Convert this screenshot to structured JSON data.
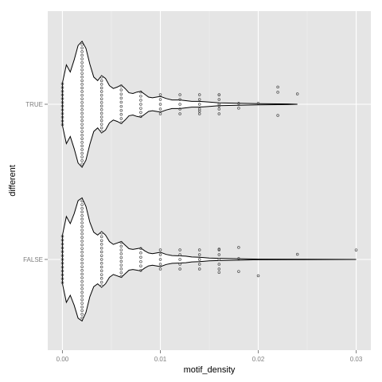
{
  "chart_data": {
    "type": "violin",
    "xlabel": "motif_density",
    "ylabel": "different",
    "x_ticks": [
      "0.00",
      "0.01",
      "0.02",
      "0.03"
    ],
    "x_tick_values": [
      0,
      0.01,
      0.02,
      0.03
    ],
    "xlim": [
      -0.0015,
      0.0315
    ],
    "categories": [
      "FALSE",
      "TRUE"
    ],
    "grid": true,
    "panel_background": "#e5e5e5",
    "grid_color": "#ffffff",
    "violin_fill": "#ffffff",
    "violin_outline": "#000000",
    "point_color": "#4d4d4d",
    "violins": [
      {
        "category": "TRUE",
        "profile": [
          [
            0,
            0.3
          ],
          [
            0.0004,
            0.55
          ],
          [
            0.0008,
            0.45
          ],
          [
            0.0012,
            0.62
          ],
          [
            0.0016,
            0.82
          ],
          [
            0.002,
            0.88
          ],
          [
            0.0024,
            0.78
          ],
          [
            0.0028,
            0.56
          ],
          [
            0.0032,
            0.38
          ],
          [
            0.0036,
            0.33
          ],
          [
            0.004,
            0.4
          ],
          [
            0.0044,
            0.36
          ],
          [
            0.0048,
            0.26
          ],
          [
            0.0052,
            0.22
          ],
          [
            0.0056,
            0.24
          ],
          [
            0.006,
            0.27
          ],
          [
            0.0064,
            0.22
          ],
          [
            0.0068,
            0.16
          ],
          [
            0.0072,
            0.15
          ],
          [
            0.0076,
            0.17
          ],
          [
            0.008,
            0.18
          ],
          [
            0.0084,
            0.14
          ],
          [
            0.0088,
            0.1
          ],
          [
            0.0092,
            0.09
          ],
          [
            0.0096,
            0.1
          ],
          [
            0.01,
            0.11
          ],
          [
            0.0106,
            0.08
          ],
          [
            0.0112,
            0.06
          ],
          [
            0.012,
            0.06
          ],
          [
            0.0126,
            0.05
          ],
          [
            0.0132,
            0.04
          ],
          [
            0.014,
            0.04
          ],
          [
            0.015,
            0.03
          ],
          [
            0.016,
            0.02
          ],
          [
            0.018,
            0.015
          ],
          [
            0.02,
            0.008
          ],
          [
            0.022,
            0.006
          ],
          [
            0.023,
            0.004
          ],
          [
            0.024,
            0.0
          ]
        ],
        "dense_columns": [
          0,
          0.002,
          0.004,
          0.006,
          0.008,
          0.01,
          0.012,
          0.014,
          0.016
        ],
        "points": [
          [
            0.018,
            -0.045
          ],
          [
            0.018,
            0.01
          ],
          [
            0.02,
            0.01
          ],
          [
            0.022,
            0.2
          ],
          [
            0.022,
            0.14
          ],
          [
            0.022,
            -0.13
          ],
          [
            0.024,
            0.12
          ],
          [
            0.016,
            0.11
          ],
          [
            0.016,
            -0.02
          ],
          [
            0.014,
            -0.08
          ]
        ]
      },
      {
        "category": "FALSE",
        "profile": [
          [
            0,
            0.34
          ],
          [
            0.0004,
            0.6
          ],
          [
            0.0008,
            0.5
          ],
          [
            0.0012,
            0.64
          ],
          [
            0.0016,
            0.82
          ],
          [
            0.002,
            0.86
          ],
          [
            0.0024,
            0.74
          ],
          [
            0.0028,
            0.52
          ],
          [
            0.0032,
            0.38
          ],
          [
            0.0036,
            0.34
          ],
          [
            0.004,
            0.39
          ],
          [
            0.0044,
            0.34
          ],
          [
            0.0048,
            0.25
          ],
          [
            0.0052,
            0.21
          ],
          [
            0.0056,
            0.23
          ],
          [
            0.006,
            0.25
          ],
          [
            0.0064,
            0.2
          ],
          [
            0.0068,
            0.15
          ],
          [
            0.0072,
            0.14
          ],
          [
            0.0076,
            0.15
          ],
          [
            0.008,
            0.16
          ],
          [
            0.0084,
            0.12
          ],
          [
            0.0088,
            0.09
          ],
          [
            0.0092,
            0.08
          ],
          [
            0.0096,
            0.09
          ],
          [
            0.01,
            0.1
          ],
          [
            0.0106,
            0.07
          ],
          [
            0.0112,
            0.055
          ],
          [
            0.012,
            0.05
          ],
          [
            0.0126,
            0.045
          ],
          [
            0.0132,
            0.035
          ],
          [
            0.014,
            0.03
          ],
          [
            0.015,
            0.02
          ],
          [
            0.016,
            0.015
          ],
          [
            0.018,
            0.01
          ],
          [
            0.02,
            0.005
          ],
          [
            0.024,
            0.003
          ],
          [
            0.03,
            0.0
          ]
        ],
        "dense_columns": [
          0,
          0.002,
          0.004,
          0.006,
          0.008,
          0.01,
          0.012,
          0.014,
          0.016
        ],
        "points": [
          [
            0.018,
            0.14
          ],
          [
            0.018,
            0.01
          ],
          [
            0.018,
            -0.14
          ],
          [
            0.02,
            -0.19
          ],
          [
            0.024,
            0.06
          ],
          [
            0.03,
            0.11
          ],
          [
            0.016,
            -0.15
          ],
          [
            0.016,
            0.12
          ]
        ]
      }
    ]
  }
}
